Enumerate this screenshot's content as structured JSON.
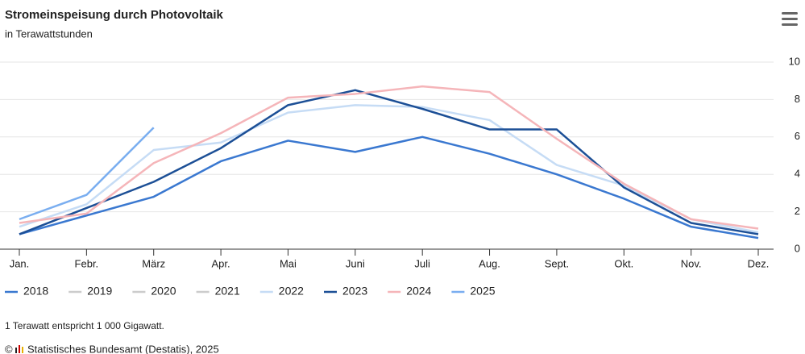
{
  "chart_data": {
    "type": "line",
    "title": "Stromeinspeisung durch Photovoltaik",
    "subtitle": "in Terawattstunden",
    "categories": [
      "Jan.",
      "Febr.",
      "März",
      "Apr.",
      "Mai",
      "Juni",
      "Juli",
      "Aug.",
      "Sept.",
      "Okt.",
      "Nov.",
      "Dez."
    ],
    "ylim": [
      0,
      10
    ],
    "yticks": [
      0,
      2,
      4,
      6,
      8,
      10
    ],
    "grid": true,
    "series": [
      {
        "name": "2018",
        "color": "#3a78d0",
        "visible": true,
        "values": [
          0.8,
          1.8,
          2.8,
          4.7,
          5.8,
          5.2,
          6.0,
          5.1,
          4.0,
          2.7,
          1.2,
          0.6
        ]
      },
      {
        "name": "2019",
        "color": "#cccccc",
        "visible": false,
        "values": [
          null,
          null,
          null,
          null,
          null,
          null,
          null,
          null,
          null,
          null,
          null,
          null
        ]
      },
      {
        "name": "2020",
        "color": "#cccccc",
        "visible": false,
        "values": [
          null,
          null,
          null,
          null,
          null,
          null,
          null,
          null,
          null,
          null,
          null,
          null
        ]
      },
      {
        "name": "2021",
        "color": "#cccccc",
        "visible": false,
        "values": [
          null,
          null,
          null,
          null,
          null,
          null,
          null,
          null,
          null,
          null,
          null,
          null
        ]
      },
      {
        "name": "2022",
        "color": "#c6dcf5",
        "visible": true,
        "values": [
          1.2,
          2.4,
          5.3,
          5.7,
          7.3,
          7.7,
          7.6,
          6.9,
          4.5,
          3.4,
          1.6,
          0.9
        ]
      },
      {
        "name": "2023",
        "color": "#1c4f96",
        "visible": true,
        "values": [
          0.8,
          2.2,
          3.6,
          5.4,
          7.7,
          8.5,
          7.5,
          6.4,
          6.4,
          3.3,
          1.4,
          0.8
        ]
      },
      {
        "name": "2024",
        "color": "#f5b5b9",
        "visible": true,
        "values": [
          1.4,
          1.9,
          4.6,
          6.2,
          8.1,
          8.3,
          8.7,
          8.4,
          5.9,
          3.5,
          1.6,
          1.1
        ]
      },
      {
        "name": "2025",
        "color": "#7aaef0",
        "visible": true,
        "values": [
          1.6,
          2.9,
          6.5,
          null,
          null,
          null,
          null,
          null,
          null,
          null,
          null,
          null
        ]
      }
    ],
    "note": "1 Terawatt entspricht 1 000 Gigawatt.",
    "copyright": "©",
    "source": "Statistisches Bundesamt (Destatis), 2025"
  }
}
